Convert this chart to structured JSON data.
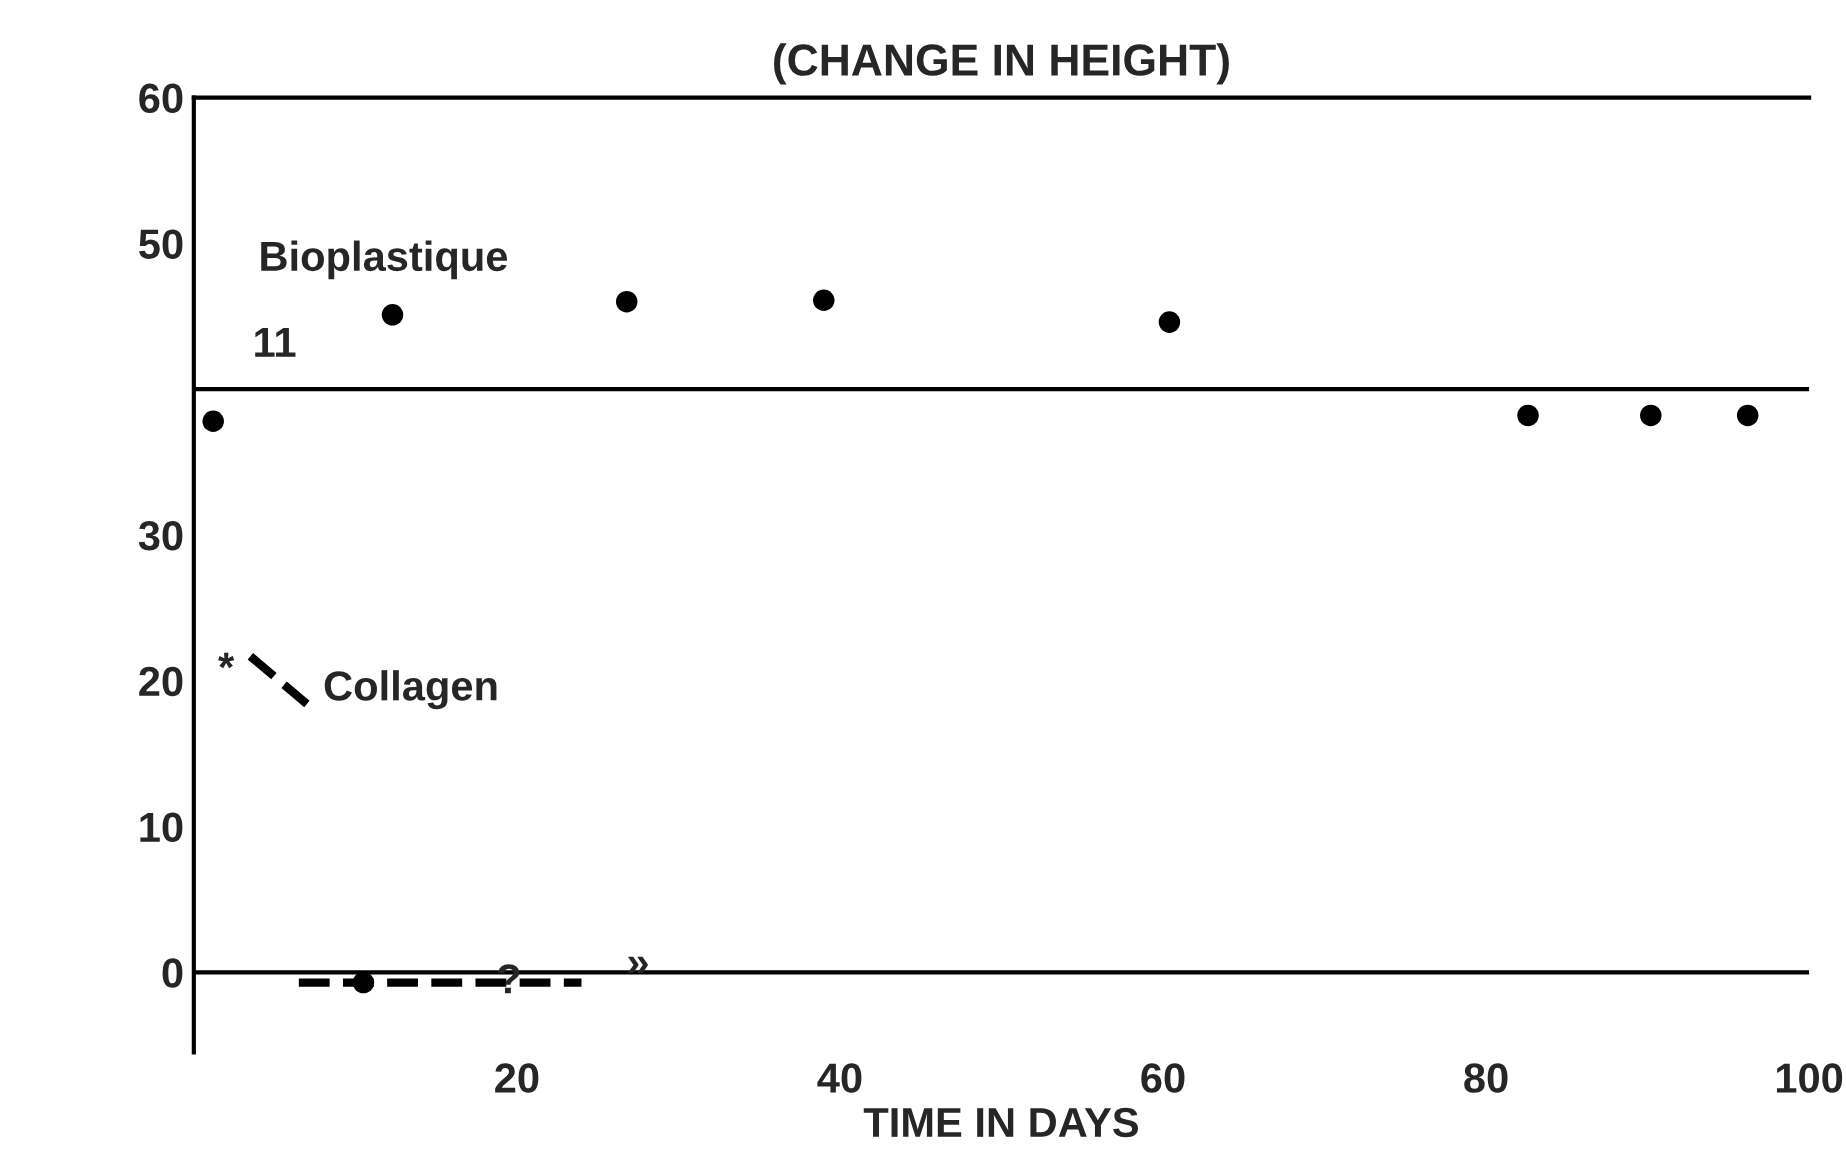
{
  "chart_data": {
    "type": "scatter",
    "title": "(CHANGE IN HEIGHT)",
    "xlabel": "TIME IN DAYS",
    "xlim": [
      0,
      100
    ],
    "ylim": [
      -5.5,
      60
    ],
    "xticks": [
      20,
      40,
      60,
      80,
      100
    ],
    "yticks": [
      0,
      10,
      20,
      30,
      50,
      60
    ],
    "series": [
      {
        "name": "Bioplastique",
        "color": "#000000",
        "marker": "circle",
        "x": [
          1.2,
          12.3,
          26.8,
          39.0,
          60.4,
          82.6,
          90.2,
          96.2
        ],
        "values": [
          37.8,
          45.1,
          46.0,
          46.1,
          44.6,
          38.2,
          38.2,
          38.2
        ]
      },
      {
        "name": "Collagen",
        "type": "line",
        "line_style": "dashed",
        "marker": "none",
        "color": "#000000",
        "x": [
          6.5,
          10.5,
          24.0
        ],
        "values": [
          -0.7,
          -0.7,
          -0.7
        ]
      },
      {
        "color": "#000000",
        "marker": "circle",
        "x": [
          10.5
        ],
        "values": [
          -0.7
        ]
      }
    ],
    "ref_lines": [
      {
        "axis": "y",
        "value": 40,
        "color": "#000000"
      },
      {
        "axis": "y",
        "value": 0,
        "color": "#000000"
      }
    ],
    "annotations": [
      "11",
      "*",
      {
        "text": "?",
        "x": 19.5,
        "y": -0.7
      },
      {
        "text": "»",
        "x": 27.5,
        "y": 0.5
      }
    ],
    "grid": false,
    "legend": "left"
  }
}
